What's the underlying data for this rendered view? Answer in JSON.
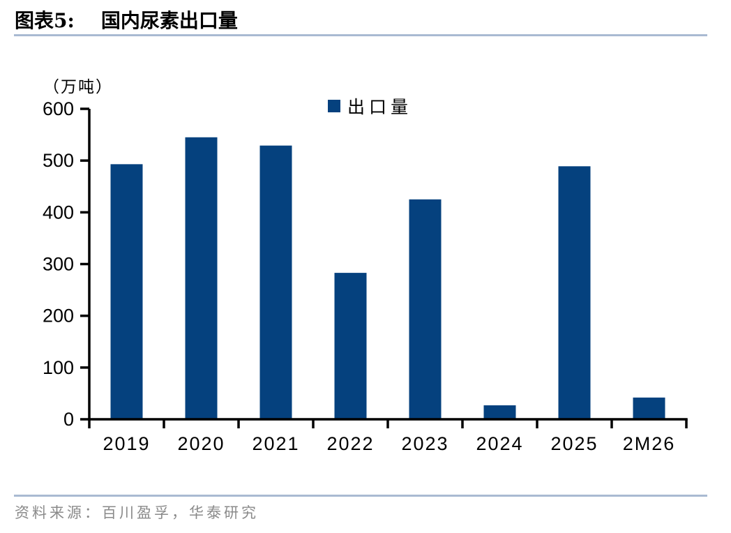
{
  "header": {
    "figure_label": "图表5:",
    "title": "国内尿素出口量"
  },
  "chart": {
    "unit_label": "（万吨）",
    "legend_label": "出口量"
  },
  "footer": {
    "source": "资料来源：百川盈孚，华泰研究"
  },
  "colors": {
    "bar": "#05417E",
    "axis": "#000000",
    "rule": "#A9BAD2",
    "source_text": "#8A8A8A",
    "tick_label": "#000000"
  },
  "chart_data": {
    "type": "bar",
    "title": "国内尿素出口量",
    "series_name": "出口量",
    "categories": [
      "2019",
      "2020",
      "2021",
      "2022",
      "2023",
      "2024",
      "2025",
      "2M26"
    ],
    "values": [
      493,
      545,
      529,
      283,
      425,
      27,
      489,
      42
    ],
    "ylabel": "（万吨）",
    "ylim": [
      0,
      600
    ],
    "ytick_step": 100,
    "ytick_labels": [
      "0",
      "100",
      "200",
      "300",
      "400",
      "500",
      "600"
    ],
    "grid": false,
    "legend_position": "top-center"
  }
}
